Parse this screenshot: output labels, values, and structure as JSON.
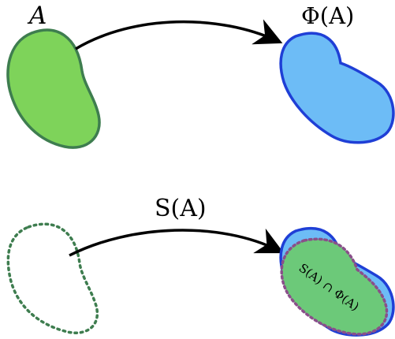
{
  "labels": {
    "set_a": "A",
    "phi_a": "Φ(A)",
    "s_a": "S(A)",
    "intersection": "S(A) ∩ Φ(A)"
  },
  "colors": {
    "green_fill": "#7ed35a",
    "green_stroke": "#3e7d4f",
    "blue_fill": "#6dbcf6",
    "blue_stroke": "#1f3fd6",
    "intersection_fill": "#6cc979",
    "intersection_stroke": "#8a4f8a",
    "arrow": "#000000"
  }
}
